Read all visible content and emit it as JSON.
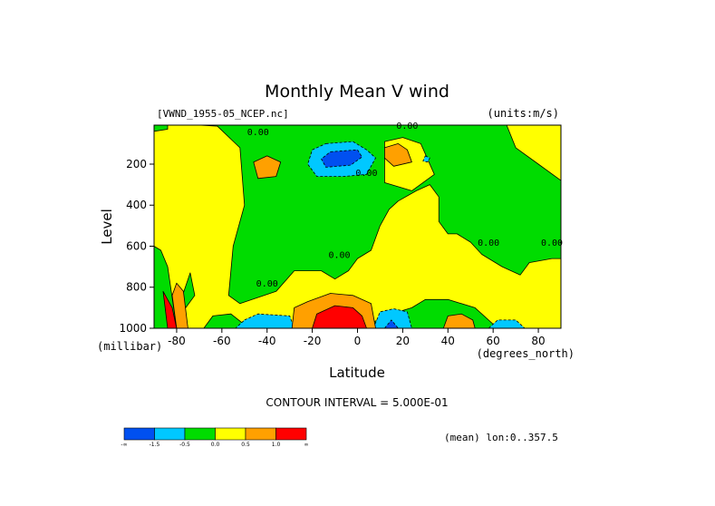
{
  "chart_data": {
    "type": "heatmap",
    "title": "Monthly Mean V wind",
    "dataset_label": "[VWND_1955-05_NCEP.nc]",
    "units_label": "(units:m/s)",
    "xlabel": "Latitude",
    "x_unit_label": "(degrees_north)",
    "ylabel": "Level",
    "y_unit_label": "(millibar)",
    "xlim": [
      -90,
      90
    ],
    "ylim": [
      1000,
      10
    ],
    "x_ticks": [
      -80,
      -60,
      -40,
      -20,
      0,
      20,
      40,
      60,
      80
    ],
    "y_ticks": [
      200,
      400,
      600,
      800,
      1000
    ],
    "contour_interval_label": "CONTOUR INTERVAL = 5.000E-01",
    "subset_label": "(mean) lon:0..357.5",
    "contour_labels": [
      {
        "text": "0.00",
        "lat": 22,
        "level": 10
      },
      {
        "text": "0.00",
        "lat": -44,
        "level": 40
      },
      {
        "text": "0.00",
        "lat": 4,
        "level": 240
      },
      {
        "text": "0.00",
        "lat": -8,
        "level": 640
      },
      {
        "text": "0.00",
        "lat": -40,
        "level": 780
      },
      {
        "text": "0.00",
        "lat": 58,
        "level": 580
      },
      {
        "text": "0.00",
        "lat": 86,
        "level": 580
      }
    ],
    "colorbar": {
      "colors": [
        "#0050f0",
        "#00c8ff",
        "#00dc00",
        "#ffff00",
        "#ffa000",
        "#ff0000"
      ],
      "labels": [
        "-∞",
        "-1.5",
        "-0.5",
        "0.0",
        "0.5",
        "1.0",
        "∞"
      ]
    },
    "regions": [
      {
        "c": 2,
        "pts": [
          [
            -90,
            1000
          ],
          [
            -90,
            10
          ],
          [
            90,
            10
          ],
          [
            90,
            1000
          ]
        ]
      },
      {
        "c": 3,
        "pts": [
          [
            -62,
            15
          ],
          [
            -52,
            120
          ],
          [
            -50,
            400
          ],
          [
            -55,
            600
          ],
          [
            -57,
            840
          ],
          [
            -52,
            880
          ],
          [
            -36,
            820
          ],
          [
            -28,
            720
          ],
          [
            -22,
            720
          ],
          [
            -16,
            720
          ],
          [
            -10,
            760
          ],
          [
            -4,
            720
          ],
          [
            0,
            660
          ],
          [
            6,
            620
          ],
          [
            10,
            500
          ],
          [
            14,
            420
          ],
          [
            18,
            380
          ],
          [
            26,
            330
          ],
          [
            32,
            300
          ],
          [
            36,
            360
          ],
          [
            36,
            480
          ],
          [
            40,
            540
          ],
          [
            44,
            540
          ],
          [
            50,
            580
          ],
          [
            55,
            640
          ],
          [
            64,
            700
          ],
          [
            72,
            740
          ],
          [
            76,
            680
          ],
          [
            86,
            660
          ],
          [
            90,
            660
          ],
          [
            90,
            1000
          ],
          [
            62,
            1000
          ],
          [
            52,
            900
          ],
          [
            40,
            860
          ],
          [
            30,
            860
          ],
          [
            24,
            900
          ],
          [
            18,
            920
          ],
          [
            0,
            1000
          ],
          [
            -22,
            1000
          ],
          [
            -35,
            1000
          ],
          [
            -48,
            1000
          ],
          [
            -56,
            930
          ],
          [
            -64,
            940
          ],
          [
            -68,
            1000
          ],
          [
            -80,
            1000
          ],
          [
            -84,
            700
          ],
          [
            -87,
            620
          ],
          [
            -90,
            600
          ],
          [
            -90,
            10
          ],
          [
            -70,
            10
          ]
        ]
      },
      {
        "c": 3,
        "pts": [
          [
            12,
            90
          ],
          [
            20,
            70
          ],
          [
            28,
            100
          ],
          [
            34,
            250
          ],
          [
            24,
            330
          ],
          [
            12,
            290
          ]
        ]
      },
      {
        "c": 3,
        "pts": [
          [
            66,
            10
          ],
          [
            90,
            10
          ],
          [
            90,
            280
          ],
          [
            80,
            200
          ],
          [
            70,
            120
          ]
        ]
      },
      {
        "c": 2,
        "pts": [
          [
            -90,
            10
          ],
          [
            -84,
            10
          ],
          [
            -84,
            30
          ],
          [
            -90,
            40
          ]
        ]
      },
      {
        "c": 2,
        "pts": [
          [
            -74,
            730
          ],
          [
            -72,
            840
          ],
          [
            -76,
            900
          ],
          [
            -78,
            860
          ]
        ]
      },
      {
        "c": 1,
        "pts": [
          [
            -14,
            100
          ],
          [
            -2,
            90
          ],
          [
            4,
            130
          ],
          [
            8,
            170
          ],
          [
            4,
            250
          ],
          [
            -6,
            260
          ],
          [
            -18,
            260
          ],
          [
            -22,
            200
          ],
          [
            -20,
            130
          ]
        ]
      },
      {
        "c": 0,
        "pts": [
          [
            -12,
            140
          ],
          [
            0,
            130
          ],
          [
            2,
            165
          ],
          [
            -3,
            205
          ],
          [
            -14,
            215
          ],
          [
            -16,
            175
          ]
        ]
      },
      {
        "c": 1,
        "pts": [
          [
            -50,
            960
          ],
          [
            -44,
            930
          ],
          [
            -30,
            940
          ],
          [
            -28,
            1000
          ],
          [
            -54,
            1000
          ]
        ]
      },
      {
        "c": 1,
        "pts": [
          [
            7,
            1000
          ],
          [
            10,
            920
          ],
          [
            16,
            905
          ],
          [
            22,
            920
          ],
          [
            24,
            1000
          ]
        ]
      },
      {
        "c": 0,
        "pts": [
          [
            12,
            1000
          ],
          [
            15,
            960
          ],
          [
            18,
            1000
          ]
        ]
      },
      {
        "c": 1,
        "pts": [
          [
            58,
            1000
          ],
          [
            62,
            960
          ],
          [
            70,
            960
          ],
          [
            74,
            1000
          ]
        ]
      },
      {
        "c": 1,
        "pts": [
          [
            30,
            160
          ],
          [
            32,
            170
          ],
          [
            31,
            190
          ],
          [
            29,
            185
          ]
        ]
      },
      {
        "c": 4,
        "pts": [
          [
            -46,
            190
          ],
          [
            -40,
            160
          ],
          [
            -34,
            190
          ],
          [
            -36,
            260
          ],
          [
            -44,
            270
          ]
        ]
      },
      {
        "c": 4,
        "pts": [
          [
            12,
            120
          ],
          [
            18,
            100
          ],
          [
            22,
            130
          ],
          [
            24,
            190
          ],
          [
            16,
            210
          ],
          [
            12,
            170
          ]
        ]
      },
      {
        "c": 4,
        "pts": [
          [
            -29,
            1000
          ],
          [
            -28,
            900
          ],
          [
            -22,
            870
          ],
          [
            -12,
            830
          ],
          [
            -2,
            840
          ],
          [
            6,
            880
          ],
          [
            8,
            1000
          ]
        ]
      },
      {
        "c": 4,
        "pts": [
          [
            38,
            1000
          ],
          [
            40,
            940
          ],
          [
            46,
            930
          ],
          [
            51,
            960
          ],
          [
            52,
            1000
          ]
        ]
      },
      {
        "c": 4,
        "pts": [
          [
            -82,
            840
          ],
          [
            -80,
            780
          ],
          [
            -77,
            820
          ],
          [
            -75,
            1000
          ],
          [
            -80,
            1000
          ]
        ]
      },
      {
        "c": 5,
        "pts": [
          [
            -20,
            1000
          ],
          [
            -18,
            930
          ],
          [
            -10,
            890
          ],
          [
            -2,
            900
          ],
          [
            2,
            940
          ],
          [
            4,
            1000
          ]
        ]
      },
      {
        "c": 5,
        "pts": [
          [
            -84,
            1000
          ],
          [
            -86,
            820
          ],
          [
            -82,
            900
          ],
          [
            -80,
            1000
          ]
        ]
      }
    ]
  }
}
